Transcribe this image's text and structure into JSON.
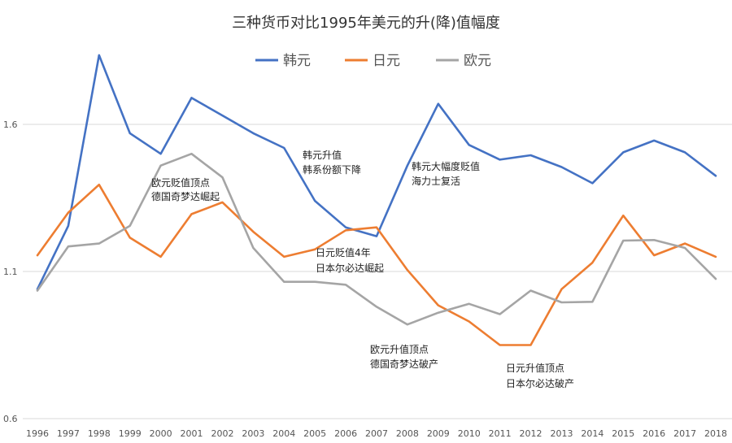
{
  "chart_data": {
    "type": "line",
    "title": "三种货币对比1995年美元的升(降)值幅度",
    "xlabel": "",
    "ylabel": "",
    "x": [
      "1996",
      "1997",
      "1998",
      "1999",
      "2000",
      "2001",
      "2002",
      "2003",
      "2004",
      "2005",
      "2006",
      "2007",
      "2008",
      "2009",
      "2010",
      "2011",
      "2012",
      "2013",
      "2014",
      "2015",
      "2016",
      "2017",
      "2018"
    ],
    "ylim": [
      0.6,
      1.85
    ],
    "y_ticks": [
      "0.6",
      "1.1",
      "1.6"
    ],
    "y_tick_values": [
      0.6,
      1.1,
      1.6
    ],
    "grid": true,
    "legend_position": "top",
    "series": [
      {
        "name": "韩元",
        "color": "#4472C4",
        "values": [
          1.04,
          1.255,
          1.835,
          1.57,
          1.5,
          1.69,
          1.63,
          1.57,
          1.52,
          1.34,
          1.25,
          1.22,
          1.46,
          1.67,
          1.53,
          1.48,
          1.495,
          1.455,
          1.4,
          1.505,
          1.545,
          1.505,
          1.425
        ]
      },
      {
        "name": "日元",
        "color": "#ED7D31",
        "values": [
          1.155,
          1.3,
          1.395,
          1.215,
          1.15,
          1.295,
          1.335,
          1.235,
          1.15,
          1.175,
          1.24,
          1.25,
          1.105,
          0.985,
          0.93,
          0.85,
          0.85,
          1.04,
          1.13,
          1.29,
          1.155,
          1.195,
          1.15
        ]
      },
      {
        "name": "欧元",
        "color": "#A5A5A5",
        "values": [
          1.035,
          1.185,
          1.195,
          1.255,
          1.46,
          1.5,
          1.42,
          1.18,
          1.065,
          1.065,
          1.055,
          0.98,
          0.92,
          0.96,
          0.99,
          0.955,
          1.035,
          0.995,
          0.997,
          1.205,
          1.207,
          1.18,
          1.075
        ]
      }
    ],
    "annotations": [
      {
        "id": "euro-low",
        "lines": [
          "欧元贬值顶点",
          "德国奇梦达崛起"
        ]
      },
      {
        "id": "krw-up",
        "lines": [
          "韩元升值",
          "韩系份额下降"
        ]
      },
      {
        "id": "krw-down",
        "lines": [
          "韩元大幅度贬值",
          "海力士复活"
        ]
      },
      {
        "id": "jpy-down",
        "lines": [
          "日元贬值4年",
          "日本尔必达崛起"
        ]
      },
      {
        "id": "euro-high",
        "lines": [
          "欧元升值顶点",
          "德国奇梦达破产"
        ]
      },
      {
        "id": "jpy-high",
        "lines": [
          "日元升值顶点",
          "日本尔必达破产"
        ]
      }
    ]
  }
}
